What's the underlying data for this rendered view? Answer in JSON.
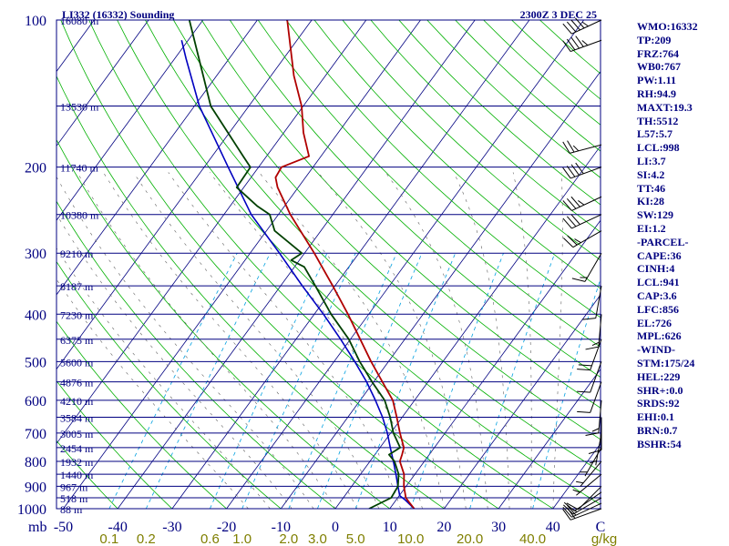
{
  "header": {
    "station": "LI332 (16332) Sounding",
    "time": "2300Z  3 DEC 25"
  },
  "colors": {
    "axis": "#000080",
    "isobar": "#000080",
    "dry_adiabat": "#00b000",
    "moist_adiabat": "#606060",
    "mixing_ratio": "#00a0e0",
    "temperature": "#b00000",
    "dewpoint": "#004000",
    "parcel": "#0000c0",
    "background": "#ffffff",
    "wind_barb": "#000000"
  },
  "chart_data": {
    "type": "skew-t",
    "pressure_axis": {
      "label": "mb",
      "ticks": [
        100,
        200,
        300,
        400,
        500,
        600,
        700,
        800,
        900,
        1000
      ],
      "range": [
        1000,
        100
      ]
    },
    "temperature_axis": {
      "ticks": [
        -50,
        -40,
        -30,
        -20,
        -10,
        0,
        10,
        20,
        30,
        40
      ],
      "range": [
        -50,
        50
      ],
      "unit_label": "C"
    },
    "mixing_ratio_axis": {
      "ticks": [
        "0.1",
        "0.2",
        "0.6",
        "1.0",
        "2.0",
        "3.0",
        "5.0",
        "10.0",
        "20.0",
        "40.0"
      ],
      "unit_label": "g/kg"
    },
    "height_labels": [
      {
        "pressure": 100,
        "text": "16080 m"
      },
      {
        "pressure": 150,
        "text": "13530 m"
      },
      {
        "pressure": 200,
        "text": "11740 m"
      },
      {
        "pressure": 250,
        "text": "10380 m"
      },
      {
        "pressure": 300,
        "text": "9210 m"
      },
      {
        "pressure": 350,
        "text": "8187 m"
      },
      {
        "pressure": 400,
        "text": "7230 m"
      },
      {
        "pressure": 450,
        "text": "6375 m"
      },
      {
        "pressure": 500,
        "text": "5600 m"
      },
      {
        "pressure": 550,
        "text": "4876 m"
      },
      {
        "pressure": 600,
        "text": "4210 m"
      },
      {
        "pressure": 650,
        "text": "3584 m"
      },
      {
        "pressure": 700,
        "text": "3005 m"
      },
      {
        "pressure": 750,
        "text": "2454 m"
      },
      {
        "pressure": 800,
        "text": "1932 m"
      },
      {
        "pressure": 850,
        "text": "1440 m"
      },
      {
        "pressure": 900,
        "text": "967 m"
      },
      {
        "pressure": 950,
        "text": "518 m"
      },
      {
        "pressure": 1000,
        "text": "88 m"
      }
    ],
    "temperature_profile": [
      [
        1000,
        14.5
      ],
      [
        975,
        13
      ],
      [
        950,
        11.5
      ],
      [
        900,
        9.6
      ],
      [
        850,
        8
      ],
      [
        800,
        5.5
      ],
      [
        775,
        5
      ],
      [
        750,
        4.4
      ],
      [
        700,
        1.7
      ],
      [
        650,
        -1
      ],
      [
        600,
        -4
      ],
      [
        550,
        -8.4
      ],
      [
        500,
        -13.2
      ],
      [
        450,
        -18.2
      ],
      [
        400,
        -23.8
      ],
      [
        350,
        -30.4
      ],
      [
        300,
        -38.2
      ],
      [
        250,
        -47.8
      ],
      [
        220,
        -53.8
      ],
      [
        210,
        -55.5
      ],
      [
        200,
        -55.8
      ],
      [
        190,
        -52.2
      ],
      [
        170,
        -56.4
      ],
      [
        150,
        -60.3
      ],
      [
        130,
        -65.8
      ],
      [
        100,
        -74.5
      ]
    ],
    "dewpoint_profile": [
      [
        1000,
        6.2
      ],
      [
        950,
        8.8
      ],
      [
        900,
        8.5
      ],
      [
        850,
        7
      ],
      [
        800,
        4.5
      ],
      [
        775,
        2.6
      ],
      [
        750,
        3.7
      ],
      [
        700,
        0.5
      ],
      [
        650,
        -2.2
      ],
      [
        600,
        -5.5
      ],
      [
        550,
        -10.3
      ],
      [
        500,
        -15.3
      ],
      [
        450,
        -20.3
      ],
      [
        400,
        -26.9
      ],
      [
        350,
        -33.6
      ],
      [
        320,
        -38.2
      ],
      [
        310,
        -41.5
      ],
      [
        300,
        -40.5
      ],
      [
        270,
        -48.5
      ],
      [
        250,
        -51.6
      ],
      [
        240,
        -55.1
      ],
      [
        220,
        -61.3
      ],
      [
        200,
        -61.5
      ],
      [
        190,
        -64.3
      ],
      [
        150,
        -77
      ],
      [
        100,
        -92.5
      ]
    ],
    "parcel_profile": [
      [
        1000,
        14.5
      ],
      [
        960,
        11.7
      ],
      [
        941,
        10.1
      ],
      [
        900,
        8.5
      ],
      [
        850,
        6.5
      ],
      [
        800,
        4.3
      ],
      [
        750,
        1.9
      ],
      [
        700,
        -0.6
      ],
      [
        650,
        -3.6
      ],
      [
        600,
        -7.2
      ],
      [
        550,
        -11.3
      ],
      [
        500,
        -16.2
      ],
      [
        450,
        -21.8
      ],
      [
        400,
        -28.3
      ],
      [
        350,
        -36
      ],
      [
        300,
        -44.6
      ],
      [
        250,
        -55
      ],
      [
        200,
        -65.6
      ],
      [
        150,
        -79.1
      ],
      [
        120,
        -87.9
      ],
      [
        110,
        -91.2
      ]
    ],
    "wind_barbs": [
      {
        "pressure": 1000,
        "direction": 250,
        "speed": 22
      },
      {
        "pressure": 975,
        "direction": 245,
        "speed": 18
      },
      {
        "pressure": 950,
        "direction": 240,
        "speed": 15
      },
      {
        "pressure": 925,
        "direction": 235,
        "speed": 12
      },
      {
        "pressure": 900,
        "direction": 225,
        "speed": 8
      },
      {
        "pressure": 850,
        "direction": 230,
        "speed": 5
      },
      {
        "pressure": 800,
        "direction": 220,
        "speed": 3
      },
      {
        "pressure": 750,
        "direction": 210,
        "speed": 3
      },
      {
        "pressure": 700,
        "direction": 190,
        "speed": 5
      },
      {
        "pressure": 650,
        "direction": 180,
        "speed": 10
      },
      {
        "pressure": 600,
        "direction": 185,
        "speed": 15
      },
      {
        "pressure": 550,
        "direction": 200,
        "speed": 10
      },
      {
        "pressure": 500,
        "direction": 200,
        "speed": 12
      },
      {
        "pressure": 450,
        "direction": 200,
        "speed": 20
      },
      {
        "pressure": 400,
        "direction": 185,
        "speed": 15
      },
      {
        "pressure": 350,
        "direction": 190,
        "speed": 10
      },
      {
        "pressure": 300,
        "direction": 210,
        "speed": 15
      },
      {
        "pressure": 270,
        "direction": 240,
        "speed": 25
      },
      {
        "pressure": 250,
        "direction": 245,
        "speed": 30
      },
      {
        "pressure": 230,
        "direction": 245,
        "speed": 35
      },
      {
        "pressure": 200,
        "direction": 250,
        "speed": 40
      },
      {
        "pressure": 180,
        "direction": 255,
        "speed": 25
      },
      {
        "pressure": 110,
        "direction": 250,
        "speed": 45
      },
      {
        "pressure": 100,
        "direction": 245,
        "speed": 45
      }
    ]
  },
  "indices": [
    "WMO:16332",
    "TP:209",
    "FRZ:764",
    "WB0:767",
    "PW:1.11",
    "RH:94.9",
    "MAXT:19.3",
    "TH:5512",
    "L57:5.7",
    "LCL:998",
    "LI:3.7",
    "SI:4.2",
    "TT:46",
    "KI:28",
    "SW:129",
    "EI:1.2",
    "-PARCEL-",
    "CAPE:36",
    "CINH:4",
    "LCL:941",
    "CAP:3.6",
    "LFC:856",
    "EL:726",
    "MPL:626",
    "-WIND-",
    "STM:175/24",
    "HEL:229",
    "SHR+:0.0",
    "SRDS:92",
    "EHI:0.1",
    "BRN:0.7",
    "BSHR:54"
  ]
}
